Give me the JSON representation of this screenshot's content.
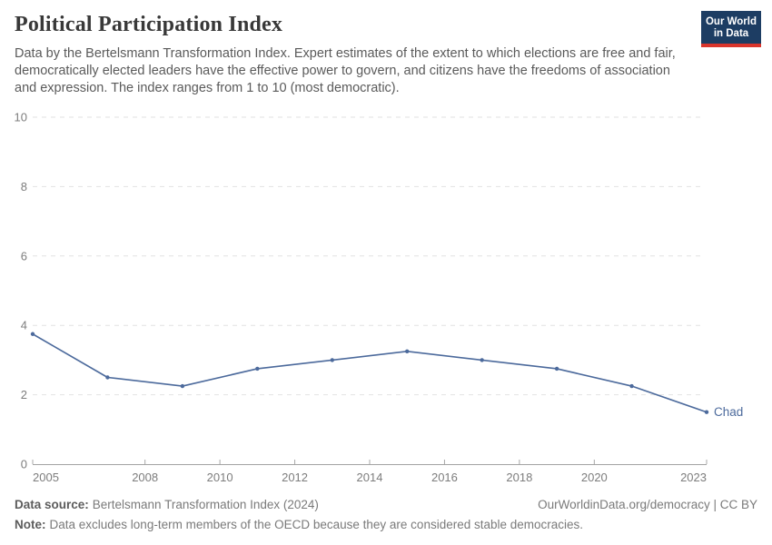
{
  "header": {
    "title": "Political Participation Index",
    "subtitle": "Data by the Bertelsmann Transformation Index. Expert estimates of the extent to which elections are free and fair, democratically elected leaders have the effective power to govern, and citizens have the freedoms of association and expression. The index ranges from 1 to 10 (most democratic).",
    "logo": {
      "line1": "Our World",
      "line2": "in Data",
      "bg_color": "#1d3d63",
      "accent_color": "#d9352c"
    }
  },
  "chart_data": {
    "type": "line",
    "title": "Political Participation Index",
    "xlabel": "",
    "ylabel": "",
    "xlim": [
      2005,
      2023
    ],
    "ylim": [
      0,
      10
    ],
    "x_ticks": [
      2005,
      2008,
      2010,
      2012,
      2014,
      2016,
      2018,
      2020,
      2023
    ],
    "y_ticks": [
      0,
      2,
      4,
      6,
      8,
      10
    ],
    "grid": "horizontal-dashed",
    "legend_position": "end-of-line-label",
    "series": [
      {
        "name": "Chad",
        "color": "#4c6a9c",
        "x": [
          2005,
          2007,
          2009,
          2011,
          2013,
          2015,
          2017,
          2019,
          2021,
          2023
        ],
        "values": [
          3.75,
          2.5,
          2.25,
          2.75,
          3.0,
          3.25,
          3.0,
          2.75,
          2.25,
          1.5
        ]
      }
    ]
  },
  "footer": {
    "source_label": "Data source:",
    "source_text": "Bertelsmann Transformation Index (2024)",
    "right_text": "OurWorldinData.org/democracy | CC BY",
    "note_label": "Note:",
    "note_text": "Data excludes long-term members of the OECD because they are considered stable democracies."
  }
}
